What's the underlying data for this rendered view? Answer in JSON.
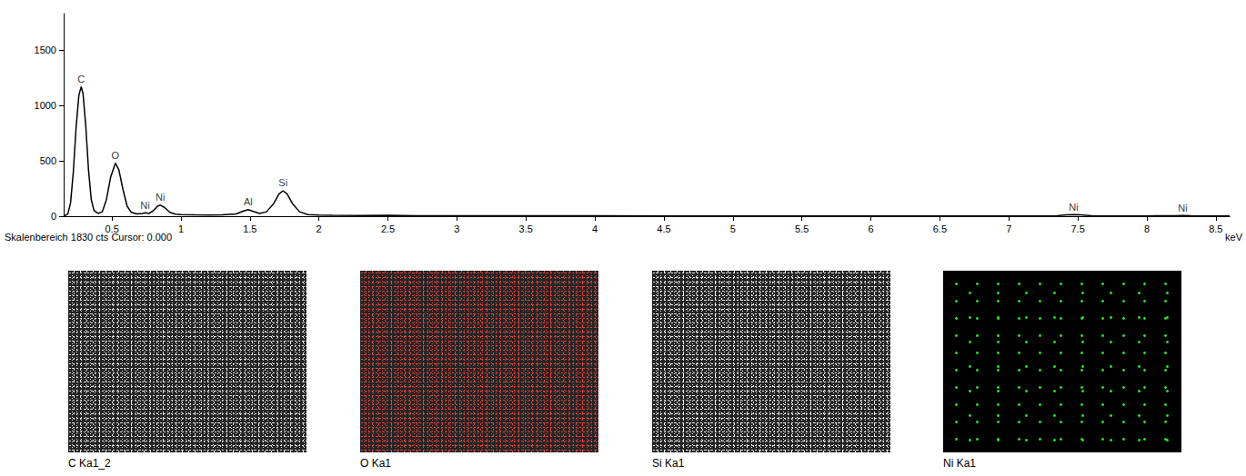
{
  "chart_data": {
    "type": "line",
    "caption": "Skalenbereich 1830 cts Cursor: 0.000",
    "xlabel": "keV",
    "x": [
      0.15,
      0.18,
      0.2,
      0.22,
      0.24,
      0.26,
      0.277,
      0.29,
      0.31,
      0.33,
      0.35,
      0.37,
      0.4,
      0.43,
      0.46,
      0.49,
      0.525,
      0.55,
      0.58,
      0.61,
      0.64,
      0.68,
      0.72,
      0.74,
      0.77,
      0.8,
      0.83,
      0.85,
      0.88,
      0.92,
      0.96,
      1.0,
      1.1,
      1.2,
      1.3,
      1.4,
      1.45,
      1.487,
      1.52,
      1.57,
      1.62,
      1.67,
      1.71,
      1.74,
      1.77,
      1.81,
      1.86,
      1.92,
      2.0,
      2.1,
      2.3,
      2.5,
      2.7,
      3.0,
      3.5,
      4.0,
      4.5,
      5.0,
      5.5,
      6.0,
      6.5,
      7.0,
      7.35,
      7.42,
      7.47,
      7.52,
      7.6,
      8.0,
      8.2,
      8.26,
      8.32,
      8.6
    ],
    "values": [
      0,
      20,
      120,
      400,
      800,
      1090,
      1170,
      1110,
      820,
      420,
      150,
      50,
      25,
      40,
      150,
      350,
      480,
      420,
      240,
      90,
      35,
      20,
      25,
      30,
      25,
      50,
      90,
      100,
      80,
      35,
      18,
      15,
      12,
      10,
      12,
      20,
      45,
      60,
      45,
      25,
      40,
      110,
      200,
      230,
      200,
      110,
      40,
      15,
      10,
      8,
      6,
      8,
      5,
      5,
      4,
      4,
      3,
      3,
      3,
      3,
      3,
      3,
      4,
      12,
      15,
      12,
      4,
      3,
      4,
      6,
      4,
      3
    ],
    "color": "#000000",
    "xlim": [
      0.15,
      8.6
    ],
    "xticks": [
      0.5,
      1,
      1.5,
      2,
      2.5,
      3,
      3.5,
      4,
      4.5,
      5,
      5.5,
      6,
      6.5,
      7,
      7.5,
      8,
      8.5
    ],
    "ylim": [
      0,
      1830
    ],
    "yticks": [
      0,
      500,
      1000,
      1500
    ],
    "grid": false,
    "annotations": [
      {
        "text": "C",
        "x": 0.277,
        "y": 1170
      },
      {
        "text": "O",
        "x": 0.525,
        "y": 480
      },
      {
        "text": "Ni",
        "x": 0.74,
        "y": 30
      },
      {
        "text": "Ni",
        "x": 0.85,
        "y": 100
      },
      {
        "text": "Al",
        "x": 1.487,
        "y": 60
      },
      {
        "text": "Si",
        "x": 1.74,
        "y": 230
      },
      {
        "text": "Ni",
        "x": 7.47,
        "y": 15
      },
      {
        "text": "Ni",
        "x": 8.26,
        "y": 6
      }
    ]
  },
  "element_maps": [
    {
      "label": "C Ka1_2",
      "color": "#d8d8d8"
    },
    {
      "label": "O Ka1",
      "color": "#e0201c"
    },
    {
      "label": "Si Ka1",
      "color": "#e8e8e8"
    },
    {
      "label": "Ni Ka1",
      "color": "#22dd22"
    }
  ]
}
